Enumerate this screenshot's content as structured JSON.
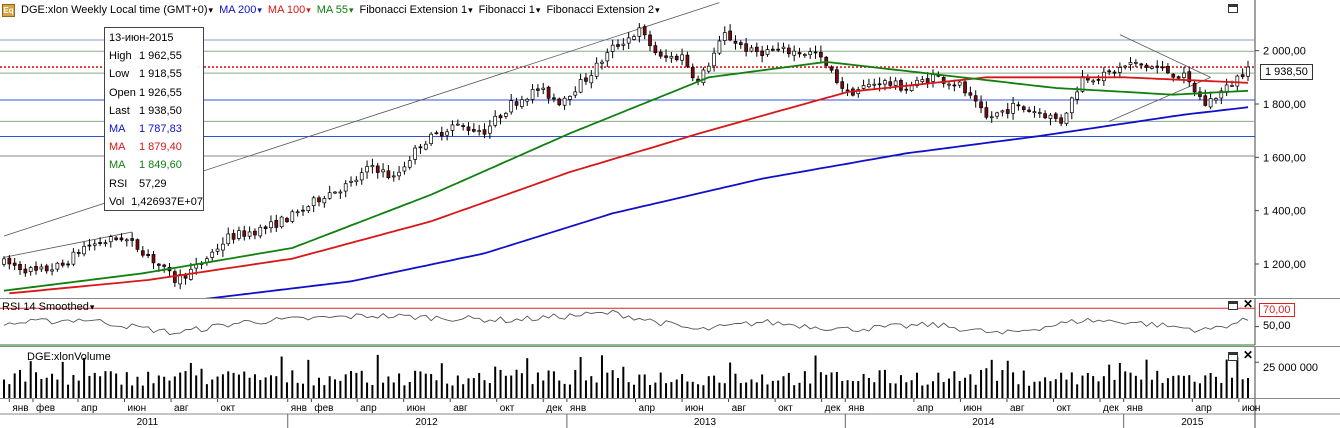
{
  "header": {
    "symbol_title": "DGE:xlon Weekly Local time (GMT+0)",
    "indicators": [
      {
        "label": "MA 200",
        "color": "#1010c8"
      },
      {
        "label": "MA 100",
        "color": "#d81818"
      },
      {
        "label": "MA 55",
        "color": "#108010"
      },
      {
        "label": "Fibonacci Extension 1",
        "color": "#000000"
      },
      {
        "label": "Fibonacci 1",
        "color": "#000000"
      },
      {
        "label": "Fibonacci Extension 2",
        "color": "#000000"
      }
    ]
  },
  "info_box": {
    "date": "13-июн-2015",
    "rows": [
      {
        "k": "High",
        "v": "1 962,55",
        "color": "#000000"
      },
      {
        "k": "Low",
        "v": "1 918,55",
        "color": "#000000"
      },
      {
        "k": "Open",
        "v": "1 926,55",
        "color": "#000000"
      },
      {
        "k": "Last",
        "v": "1 938,50",
        "color": "#000000"
      },
      {
        "k": "MA",
        "v": "1 787,83",
        "color": "#1010c8"
      },
      {
        "k": "MA",
        "v": "1 879,40",
        "color": "#d81818"
      },
      {
        "k": "MA",
        "v": "1 849,60",
        "color": "#108010"
      },
      {
        "k": "RSI",
        "v": "57,29",
        "color": "#000000"
      },
      {
        "k": "Vol",
        "v": "1,426937E+07",
        "color": "#000000"
      }
    ]
  },
  "last_price_label": "1 938,50",
  "rsi_panel": {
    "title": "RSI 14 Smoothed",
    "level_label": "70,00",
    "mid_label": "50,00"
  },
  "volume_panel": {
    "title": "DGE:xlonVolume",
    "axis_label": "25 000 000"
  },
  "chart_data": [
    {
      "type": "candlestick",
      "title": "DGE:xlon Weekly",
      "y_axis_labels": [
        "2 000,00",
        "1 800,00",
        "1 600,00",
        "1 400,00",
        "1 200,00"
      ],
      "y_axis_values": [
        2000,
        1800,
        1600,
        1400,
        1200
      ],
      "ylim": [
        1080,
        2190
      ],
      "x_range": [
        "2010-12-25",
        "2015-06-13"
      ],
      "horizontal_levels": [
        {
          "value": 1938.5,
          "color": "#d81818",
          "style": "dotted"
        },
        {
          "value": 2040,
          "color": "#8899cc"
        },
        {
          "value": 1998,
          "color": "#88aa88"
        },
        {
          "value": 1916,
          "color": "#88aa88"
        },
        {
          "value": 1815,
          "color": "#3050d0"
        },
        {
          "value": 1735,
          "color": "#88aa88"
        },
        {
          "value": 1678,
          "color": "#3050d0"
        },
        {
          "value": 1605,
          "color": "#888888"
        }
      ],
      "price_anchors": [
        [
          "2010-12-25",
          1205
        ],
        [
          "2011-02-05",
          1170
        ],
        [
          "2011-03-12",
          1195
        ],
        [
          "2011-04-09",
          1265
        ],
        [
          "2011-05-28",
          1300
        ],
        [
          "2011-06-25",
          1250
        ],
        [
          "2011-08-06",
          1140
        ],
        [
          "2011-09-03",
          1185
        ],
        [
          "2011-10-15",
          1300
        ],
        [
          "2011-12-03",
          1335
        ],
        [
          "2012-01-14",
          1390
        ],
        [
          "2012-02-18",
          1460
        ],
        [
          "2012-03-24",
          1500
        ],
        [
          "2012-04-21",
          1570
        ],
        [
          "2012-05-19",
          1520
        ],
        [
          "2012-06-23",
          1650
        ],
        [
          "2012-08-04",
          1720
        ],
        [
          "2012-09-15",
          1700
        ],
        [
          "2012-10-20",
          1800
        ],
        [
          "2012-11-24",
          1855
        ],
        [
          "2012-12-22",
          1810
        ],
        [
          "2013-01-26",
          1895
        ],
        [
          "2013-03-02",
          2010
        ],
        [
          "2013-04-06",
          2075
        ],
        [
          "2013-05-04",
          1970
        ],
        [
          "2013-06-01",
          1980
        ],
        [
          "2013-06-22",
          1880
        ],
        [
          "2013-07-27",
          2060
        ],
        [
          "2013-08-31",
          1995
        ],
        [
          "2013-10-05",
          2000
        ],
        [
          "2013-11-23",
          1990
        ],
        [
          "2014-01-04",
          1840
        ],
        [
          "2014-02-15",
          1885
        ],
        [
          "2014-03-22",
          1860
        ],
        [
          "2014-04-26",
          1905
        ],
        [
          "2014-05-31",
          1870
        ],
        [
          "2014-07-05",
          1745
        ],
        [
          "2014-08-09",
          1790
        ],
        [
          "2014-09-13",
          1770
        ],
        [
          "2014-10-11",
          1735
        ],
        [
          "2014-11-08",
          1900
        ],
        [
          "2014-12-06",
          1905
        ],
        [
          "2015-01-10",
          1950
        ],
        [
          "2015-02-14",
          1935
        ],
        [
          "2015-03-21",
          1900
        ],
        [
          "2015-04-18",
          1800
        ],
        [
          "2015-05-16",
          1860
        ],
        [
          "2015-06-13",
          1938.5
        ]
      ],
      "ma_200": [
        [
          "2011-09-03",
          1065
        ],
        [
          "2012-03-24",
          1135
        ],
        [
          "2012-09-15",
          1240
        ],
        [
          "2013-03-02",
          1390
        ],
        [
          "2013-09-14",
          1520
        ],
        [
          "2014-03-22",
          1615
        ],
        [
          "2014-09-13",
          1680
        ],
        [
          "2015-03-21",
          1760
        ],
        [
          "2015-06-13",
          1787.83
        ]
      ],
      "ma_100": [
        [
          "2011-01-01",
          1090
        ],
        [
          "2011-07-02",
          1140
        ],
        [
          "2012-01-07",
          1220
        ],
        [
          "2012-07-07",
          1360
        ],
        [
          "2013-01-05",
          1545
        ],
        [
          "2013-07-06",
          1700
        ],
        [
          "2014-01-04",
          1845
        ],
        [
          "2014-07-05",
          1900
        ],
        [
          "2015-01-03",
          1900
        ],
        [
          "2015-06-13",
          1879.4
        ]
      ],
      "ma_55": [
        [
          "2010-12-25",
          1100
        ],
        [
          "2011-06-25",
          1165
        ],
        [
          "2012-01-07",
          1260
        ],
        [
          "2012-07-07",
          1460
        ],
        [
          "2013-01-05",
          1690
        ],
        [
          "2013-07-06",
          1900
        ],
        [
          "2013-12-07",
          1958
        ],
        [
          "2014-05-03",
          1910
        ],
        [
          "2014-10-04",
          1860
        ],
        [
          "2015-03-07",
          1835
        ],
        [
          "2015-06-13",
          1849.6
        ]
      ],
      "trend_lines": [
        {
          "from": [
            "2010-12-25",
            1305
          ],
          "to": [
            "2013-07-20",
            2180
          ]
        },
        {
          "from": [
            "2010-12-25",
            1225
          ],
          "to": [
            "2011-06-11",
            1320
          ]
        },
        {
          "from": [
            "2014-12-27",
            2060
          ],
          "to": [
            "2015-04-25",
            1900
          ]
        },
        {
          "from": [
            "2014-12-13",
            1735
          ],
          "to": [
            "2015-04-25",
            1900
          ]
        }
      ]
    },
    {
      "type": "line",
      "title": "RSI 14 Smoothed",
      "ylim": [
        30,
        80
      ],
      "levels": [
        70,
        50,
        30
      ],
      "anchors": [
        [
          "2010-12-25",
          53
        ],
        [
          "2011-04-09",
          58
        ],
        [
          "2011-08-06",
          43
        ],
        [
          "2011-11-05",
          55
        ],
        [
          "2012-04-21",
          62
        ],
        [
          "2012-10-20",
          57
        ],
        [
          "2013-03-02",
          65
        ],
        [
          "2013-06-22",
          46
        ],
        [
          "2013-09-14",
          55
        ],
        [
          "2014-01-04",
          47
        ],
        [
          "2014-04-26",
          52
        ],
        [
          "2014-07-26",
          42
        ],
        [
          "2014-11-08",
          57
        ],
        [
          "2015-01-10",
          55
        ],
        [
          "2015-04-18",
          46
        ],
        [
          "2015-06-13",
          57.29
        ]
      ]
    },
    {
      "type": "bar",
      "title": "DGE:xlonVolume",
      "ylim": [
        0,
        34000000
      ],
      "y_axis_values": [
        25000000
      ],
      "last_value": 14269370
    }
  ],
  "time_axis": {
    "months": [
      {
        "label": "янв",
        "date": "2011-01-01"
      },
      {
        "label": "фев",
        "date": "2011-02-01"
      },
      {
        "label": "апр",
        "date": "2011-04-01"
      },
      {
        "label": "июн",
        "date": "2011-06-01"
      },
      {
        "label": "авг",
        "date": "2011-08-01"
      },
      {
        "label": "окт",
        "date": "2011-10-01"
      },
      {
        "label": "янв",
        "date": "2012-01-01"
      },
      {
        "label": "фев",
        "date": "2012-02-01"
      },
      {
        "label": "апр",
        "date": "2012-04-01"
      },
      {
        "label": "июн",
        "date": "2012-06-01"
      },
      {
        "label": "авг",
        "date": "2012-08-01"
      },
      {
        "label": "окт",
        "date": "2012-10-01"
      },
      {
        "label": "дек",
        "date": "2012-12-01"
      },
      {
        "label": "янв",
        "date": "2013-01-01"
      },
      {
        "label": "апр",
        "date": "2013-04-01"
      },
      {
        "label": "июн",
        "date": "2013-06-01"
      },
      {
        "label": "авг",
        "date": "2013-08-01"
      },
      {
        "label": "окт",
        "date": "2013-10-01"
      },
      {
        "label": "дек",
        "date": "2013-12-01"
      },
      {
        "label": "янв",
        "date": "2014-01-01"
      },
      {
        "label": "апр",
        "date": "2014-04-01"
      },
      {
        "label": "июн",
        "date": "2014-06-01"
      },
      {
        "label": "авг",
        "date": "2014-08-01"
      },
      {
        "label": "окт",
        "date": "2014-10-01"
      },
      {
        "label": "дек",
        "date": "2014-12-01"
      },
      {
        "label": "янв",
        "date": "2015-01-01"
      },
      {
        "label": "апр",
        "date": "2015-04-01"
      },
      {
        "label": "июн",
        "date": "2015-06-01"
      }
    ],
    "years": [
      {
        "label": "2011",
        "date": "2011-07-01"
      },
      {
        "label": "2012",
        "date": "2012-07-01"
      },
      {
        "label": "2013",
        "date": "2013-07-01"
      },
      {
        "label": "2014",
        "date": "2014-07-01"
      },
      {
        "label": "2015",
        "date": "2015-04-01"
      }
    ],
    "year_dividers": [
      "2012-01-01",
      "2013-01-01",
      "2014-01-01",
      "2015-01-01"
    ]
  }
}
